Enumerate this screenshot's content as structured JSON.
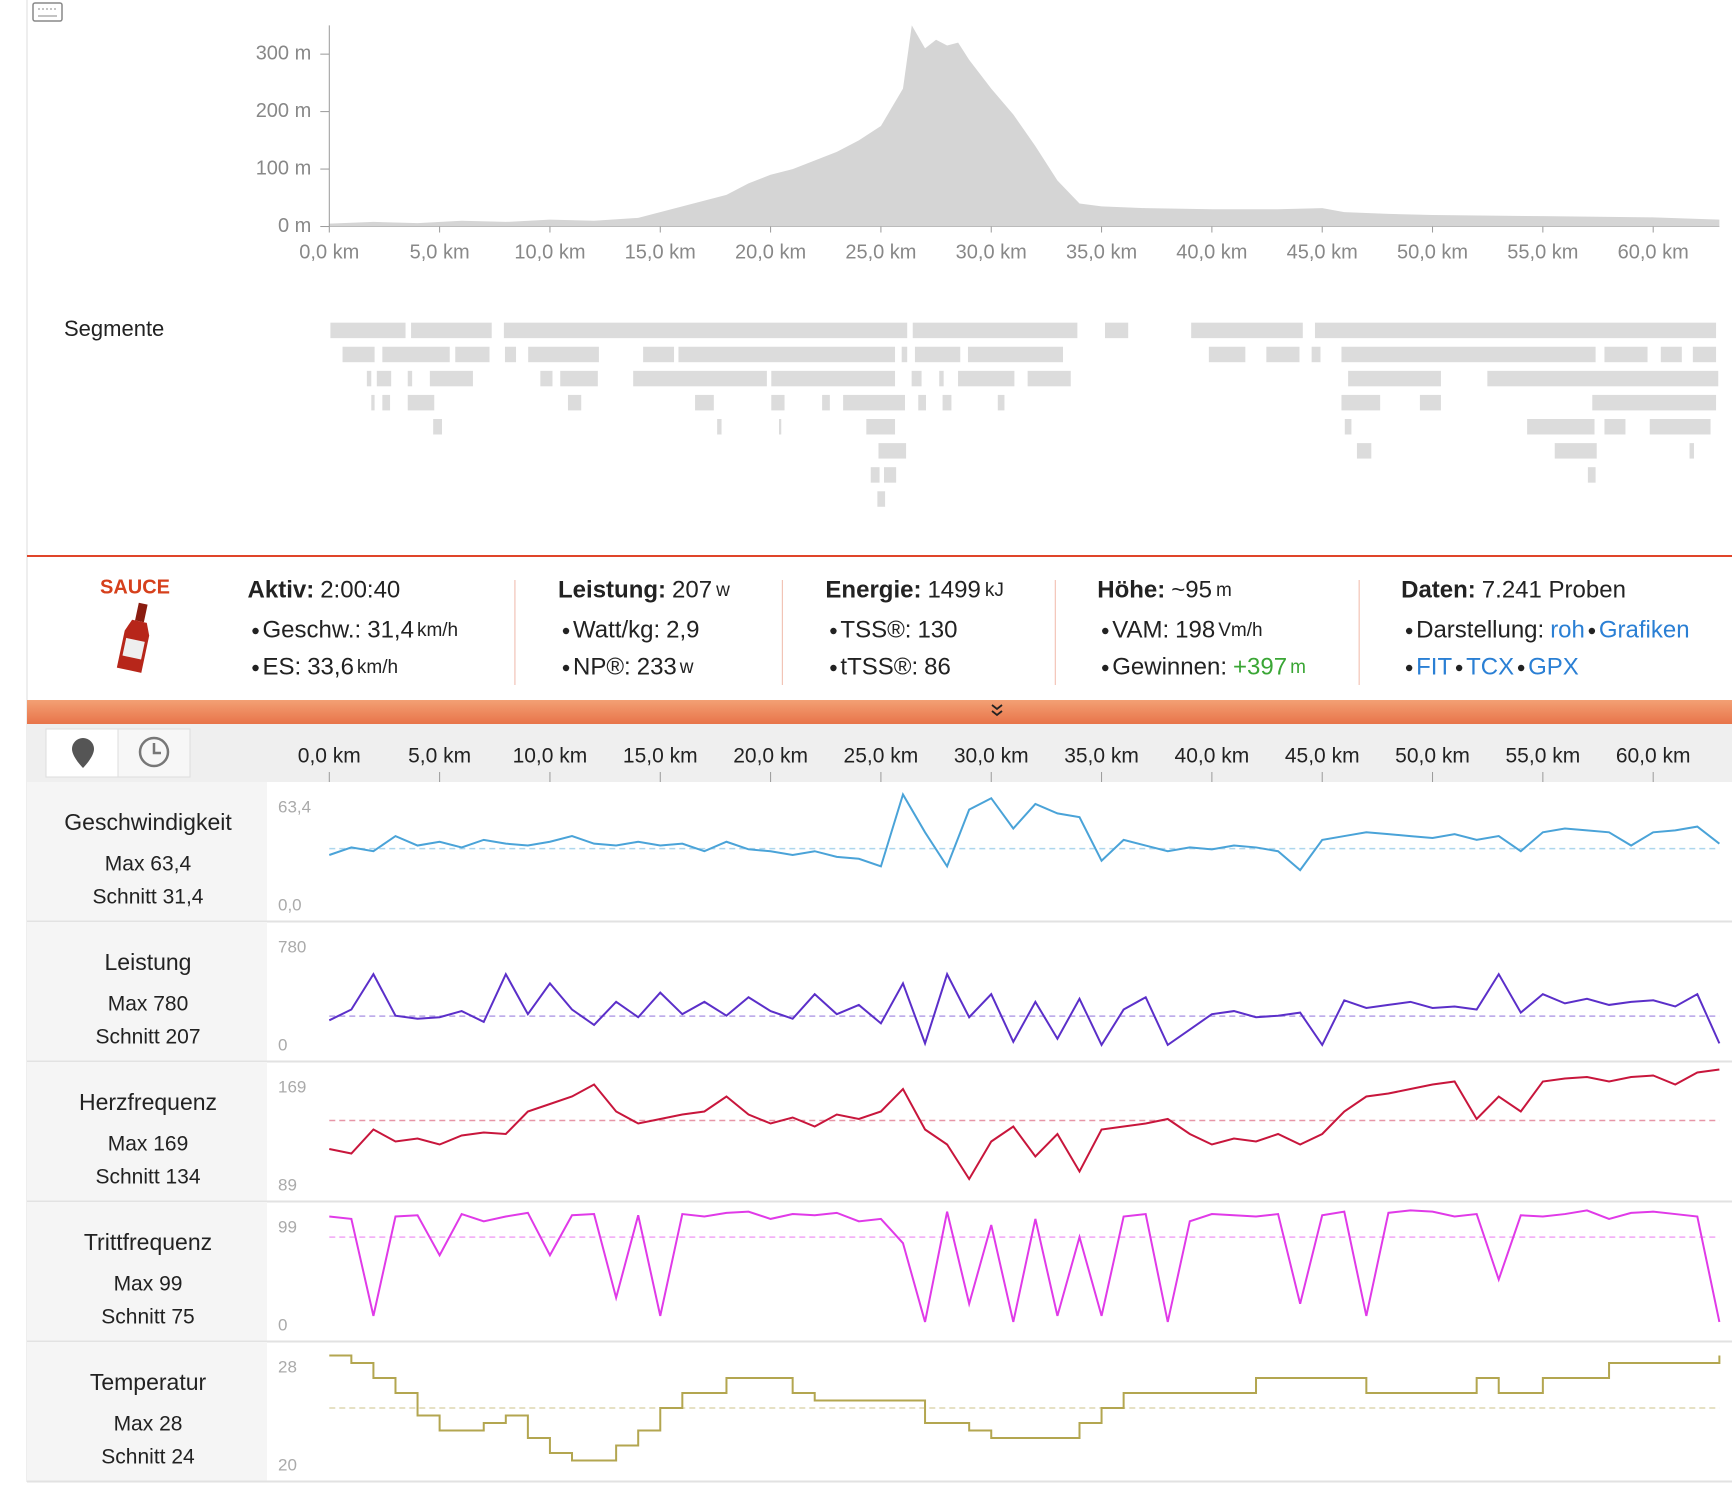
{
  "elevation": {
    "type": "area",
    "color": "#d5d5d5",
    "x": [
      0,
      2,
      4,
      6,
      8,
      10,
      12,
      14,
      15,
      16,
      17,
      18,
      19,
      20,
      21,
      22,
      23,
      24,
      25,
      26,
      26.4,
      27,
      27.5,
      28,
      28.5,
      29,
      30,
      31,
      32,
      33,
      34,
      35,
      37,
      40,
      43,
      45,
      46,
      48,
      50,
      55,
      60,
      63
    ],
    "values": [
      5,
      8,
      6,
      10,
      8,
      12,
      10,
      15,
      25,
      35,
      45,
      55,
      75,
      90,
      100,
      115,
      130,
      150,
      175,
      240,
      350,
      310,
      325,
      315,
      320,
      290,
      240,
      195,
      140,
      80,
      40,
      35,
      32,
      30,
      30,
      32,
      25,
      22,
      20,
      18,
      16,
      12
    ],
    "xlim": [
      0,
      63
    ],
    "ylim": [
      0,
      350
    ],
    "yticks": [
      {
        "value": 0,
        "label": "0 m"
      },
      {
        "value": 100,
        "label": "100 m"
      },
      {
        "value": 200,
        "label": "200 m"
      },
      {
        "value": 300,
        "label": "300 m"
      }
    ],
    "xticks": [
      {
        "value": 0,
        "label": "0,0 km"
      },
      {
        "value": 5,
        "label": "5,0 km"
      },
      {
        "value": 10,
        "label": "10,0 km"
      },
      {
        "value": 15,
        "label": "15,0 km"
      },
      {
        "value": 20,
        "label": "20,0 km"
      },
      {
        "value": 25,
        "label": "25,0 km"
      },
      {
        "value": 30,
        "label": "30,0 km"
      },
      {
        "value": 35,
        "label": "35,0 km"
      },
      {
        "value": 40,
        "label": "40,0 km"
      },
      {
        "value": 45,
        "label": "45,0 km"
      },
      {
        "value": 50,
        "label": "50,0 km"
      },
      {
        "value": 55,
        "label": "55,0 km"
      },
      {
        "value": 60,
        "label": "60,0 km"
      }
    ]
  },
  "segments_label": "Segmente",
  "logo": "SAUCE",
  "stats": [
    {
      "label": "Aktiv:",
      "value": "2:00:40",
      "items": [
        {
          "label": "Geschw.:",
          "value": "31,4",
          "unit": "km/h"
        },
        {
          "label": "ES:",
          "value": "33,6",
          "unit": "km/h"
        }
      ]
    },
    {
      "label": "Leistung:",
      "value": "207",
      "unit": "w",
      "items": [
        {
          "label": "Watt/kg:",
          "value": "2,9"
        },
        {
          "label": "NP®:",
          "value": "233",
          "unit": "w"
        }
      ]
    },
    {
      "label": "Energie:",
      "value": "1499",
      "unit": "kJ",
      "items": [
        {
          "label": "TSS®:",
          "value": "130"
        },
        {
          "label": "tTSS®:",
          "value": "86"
        }
      ]
    },
    {
      "label": "Höhe:",
      "value": "~95",
      "unit": "m",
      "items": [
        {
          "label": "VAM:",
          "value": "198",
          "unit": "Vm/h"
        },
        {
          "label": "Gewinnen:",
          "value": "+397",
          "unit": "m",
          "color": "#3aa635"
        }
      ]
    },
    {
      "label": "Daten:",
      "value": "7.241 Proben",
      "items": [
        {
          "label": "Darstellung:",
          "links": [
            "roh",
            "Grafiken"
          ]
        },
        {
          "links": [
            "FIT",
            "TCX",
            "GPX"
          ]
        }
      ]
    }
  ],
  "link_color": "#2a7fd4",
  "streams": {
    "xlim": [
      0,
      63
    ],
    "x": [
      0,
      1,
      2,
      3,
      4,
      5,
      6,
      7,
      8,
      9,
      10,
      11,
      12,
      13,
      14,
      15,
      16,
      17,
      18,
      19,
      20,
      21,
      22,
      23,
      24,
      25,
      26,
      27,
      28,
      29,
      30,
      31,
      32,
      33,
      34,
      35,
      36,
      37,
      38,
      39,
      40,
      41,
      42,
      43,
      44,
      45,
      46,
      47,
      48,
      49,
      50,
      51,
      52,
      53,
      54,
      55,
      56,
      57,
      58,
      59,
      60,
      61,
      62,
      63
    ],
    "series": [
      {
        "name": "Geschwindigkeit",
        "max_text": "Max 63,4",
        "avg_text": "Schnitt 31,4",
        "color": "#4aa3d8",
        "avg": 31.4,
        "ylim": [
          0,
          63.4
        ],
        "yticks": [
          {
            "value": 63.4,
            "label": "63,4"
          },
          {
            "value": 0,
            "label": "0,0"
          }
        ],
        "values": [
          28,
          32,
          30,
          38,
          33,
          35,
          32,
          36,
          34,
          33,
          35,
          38,
          34,
          33,
          35,
          33,
          34,
          30,
          35,
          31,
          30,
          28,
          30,
          27,
          26,
          22,
          60,
          40,
          22,
          52,
          58,
          42,
          55,
          50,
          48,
          25,
          36,
          33,
          30,
          32,
          31,
          33,
          32,
          30,
          20,
          36,
          38,
          40,
          39,
          38,
          37,
          39,
          36,
          38,
          30,
          40,
          42,
          41,
          40,
          33,
          40,
          41,
          43,
          34
        ]
      },
      {
        "name": "Leistung",
        "max_text": "Max 780",
        "avg_text": "Schnitt 207",
        "color": "#5b2fc9",
        "avg": 207,
        "ylim": [
          0,
          780
        ],
        "yticks": [
          780,
          0
        ],
        "values": [
          180,
          250,
          480,
          210,
          190,
          200,
          240,
          170,
          480,
          220,
          420,
          250,
          150,
          300,
          200,
          360,
          220,
          300,
          210,
          330,
          240,
          190,
          350,
          220,
          280,
          160,
          420,
          30,
          480,
          200,
          350,
          40,
          300,
          60,
          320,
          20,
          250,
          330,
          20,
          120,
          220,
          240,
          200,
          210,
          230,
          20,
          310,
          260,
          280,
          300,
          260,
          270,
          250,
          480,
          230,
          350,
          290,
          320,
          280,
          300,
          310,
          270,
          350,
          30
        ]
      },
      {
        "name": "Herzfrequenz",
        "max_text": "Max 169",
        "avg_text": "Schnitt 134",
        "color": "#c8163c",
        "avg": 134,
        "ylim": [
          89,
          169
        ],
        "yticks": [
          169,
          89
        ],
        "values": [
          115,
          112,
          128,
          120,
          122,
          118,
          124,
          126,
          125,
          140,
          145,
          150,
          158,
          140,
          132,
          135,
          138,
          140,
          150,
          138,
          132,
          136,
          130,
          138,
          135,
          140,
          155,
          128,
          118,
          95,
          120,
          130,
          110,
          125,
          100,
          128,
          130,
          132,
          135,
          125,
          118,
          122,
          120,
          125,
          118,
          125,
          140,
          150,
          152,
          155,
          158,
          160,
          135,
          150,
          140,
          160,
          162,
          163,
          160,
          163,
          164,
          158,
          166,
          168
        ]
      },
      {
        "name": "Trittfrequenz",
        "max_text": "Max 99",
        "avg_text": "Schnitt 75",
        "color": "#e03ae8",
        "avg": 75,
        "ylim": [
          0,
          99
        ],
        "yticks": [
          99,
          0
        ],
        "values": [
          92,
          90,
          10,
          92,
          93,
          60,
          94,
          88,
          92,
          95,
          60,
          93,
          94,
          25,
          93,
          10,
          94,
          92,
          95,
          96,
          90,
          94,
          93,
          95,
          88,
          90,
          70,
          5,
          96,
          20,
          85,
          5,
          90,
          10,
          75,
          10,
          92,
          94,
          5,
          88,
          94,
          93,
          92,
          94,
          20,
          93,
          96,
          10,
          95,
          97,
          96,
          92,
          94,
          40,
          93,
          92,
          94,
          97,
          90,
          95,
          96,
          94,
          92,
          5
        ]
      },
      {
        "name": "Temperatur",
        "max_text": "Max 28",
        "avg_text": "Schnitt 24",
        "color": "#b3a650",
        "avg": 24,
        "ylim": [
          20,
          28
        ],
        "step": true,
        "yticks": [
          28,
          20
        ],
        "values": [
          27.5,
          27,
          26,
          25,
          23.5,
          22.5,
          22.5,
          23,
          23.5,
          22,
          21,
          20.5,
          20.5,
          21.5,
          22.5,
          24,
          25,
          25,
          26,
          26,
          26,
          25,
          24.5,
          24.5,
          24.5,
          24.5,
          24.5,
          23,
          23,
          22.5,
          22,
          22,
          22,
          22,
          23,
          24,
          25,
          25,
          25,
          25,
          25,
          25,
          26,
          26,
          26,
          26,
          26,
          25,
          25,
          25,
          25,
          25,
          26,
          25,
          25,
          26,
          26,
          26,
          27,
          27,
          27,
          27,
          27,
          27.5
        ]
      }
    ]
  }
}
